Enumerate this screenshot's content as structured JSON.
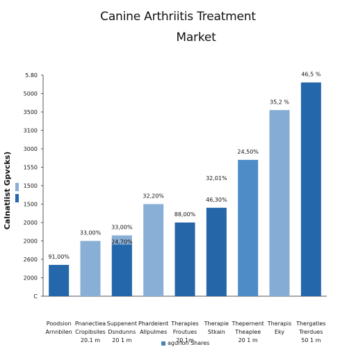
{
  "chart_data": {
    "type": "bar",
    "title_lines": [
      "Canine Arthriitis Treatment",
      "Market"
    ],
    "ylabel": "Calnatlist Gpvcks)",
    "y_tick_labels": [
      "C",
      "2000",
      "2600",
      "2000",
      "2000",
      "1500",
      "1500",
      "1550",
      "3000",
      "3100",
      "3500",
      "5000",
      "5.80"
    ],
    "categories": [
      [
        "Poodsion",
        "Arnnbilen"
      ],
      [
        "Pnanectiea",
        "Cropibsiles",
        "20.1 m"
      ],
      [
        "Suppenent",
        "Dsndunns",
        "20 1 m"
      ],
      [
        "Phardeient",
        "Allpulmes"
      ],
      [
        "Therapies",
        "Froutues",
        "20 1m"
      ],
      [
        "Therapie",
        "Stkain"
      ],
      [
        "Thepernent",
        "Theaplee",
        "20 1 m"
      ],
      [
        "Therapis",
        "Eky"
      ],
      [
        "Thergaties",
        "Trerdues",
        "50 1 m"
      ]
    ],
    "values": [
      1.7,
      3.0,
      3.3,
      5.0,
      4.0,
      4.8,
      7.4,
      10.1,
      11.6
    ],
    "value_labels": [
      "91,00%",
      "33,00%",
      "33,00%",
      "32,20%",
      "88,00%",
      "46,30%",
      "24,50%",
      "35,2 %",
      "46,5 %"
    ],
    "extra_labels": [
      {
        "bar": 2,
        "text": "24,70%"
      },
      {
        "bar": 5,
        "text": "32,01%"
      }
    ],
    "colors": [
      "#2467aa",
      "#89afd6",
      "#89afd6",
      "#89afd6",
      "#2466a8",
      "#2466a8",
      "#4e8cc8",
      "#84acd4",
      "#2467aa"
    ],
    "stack_overlay": {
      "bar": 2,
      "value": 2.8,
      "color": "#2467aa"
    },
    "ylim": [
      0,
      12
    ],
    "legend": {
      "label": "agurion Shares",
      "color": "#4a7fb8",
      "placement": "bottom-center"
    },
    "grid": false
  }
}
